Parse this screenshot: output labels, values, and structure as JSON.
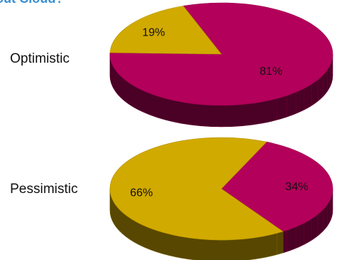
{
  "chart_data": {
    "type": "pie",
    "title": "out Cloud? ’",
    "groups": [
      {
        "name": "Optimistic",
        "slices": [
          {
            "label": "81%",
            "value": 81,
            "color": "#b3005a"
          },
          {
            "label": "19%",
            "value": 19,
            "color": "#d1aa00"
          }
        ]
      },
      {
        "name": "Pessimistic",
        "slices": [
          {
            "label": "34%",
            "value": 34,
            "color": "#b3005a"
          },
          {
            "label": "66%",
            "value": 66,
            "color": "#d1aa00"
          }
        ]
      }
    ],
    "style": "3d",
    "legend": "none"
  }
}
